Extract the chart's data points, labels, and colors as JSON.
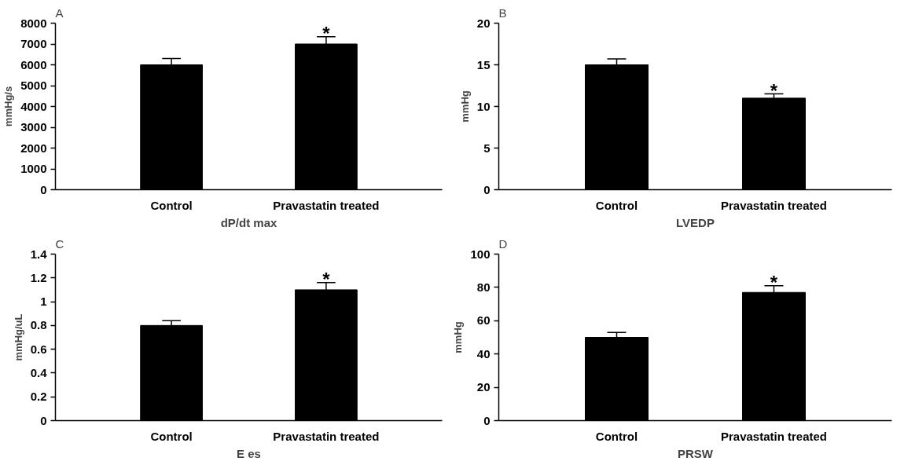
{
  "chart_data": [
    {
      "type": "bar",
      "title": "A",
      "xlabel": "dP/dt max",
      "ylabel": "mmHg/s",
      "categories": [
        "Control",
        "Pravastatin treated"
      ],
      "values": [
        6000,
        7000
      ],
      "errors": [
        [
          6000,
          6300
        ],
        [
          7000,
          7350
        ]
      ],
      "color": "#000000",
      "ylim": [
        0,
        8000
      ],
      "yticks": [
        0,
        1000,
        2000,
        3000,
        4000,
        5000,
        6000,
        7000,
        8000
      ],
      "grid": false,
      "annotations": [
        {
          "text": "*",
          "x": "Pravastatin treated",
          "y": 7350
        }
      ]
    },
    {
      "type": "bar",
      "title": "B",
      "xlabel": "LVEDP",
      "ylabel": "mmHg",
      "categories": [
        "Control",
        "Pravastatin treated"
      ],
      "values": [
        15,
        11
      ],
      "errors": [
        [
          15,
          15.7
        ],
        [
          11,
          11.5
        ]
      ],
      "color": "#000000",
      "ylim": [
        0,
        20
      ],
      "yticks": [
        0,
        5,
        10,
        15,
        20
      ],
      "grid": false,
      "annotations": [
        {
          "text": "*",
          "x": "Pravastatin treated",
          "y": 11.5
        }
      ]
    },
    {
      "type": "bar",
      "title": "C",
      "xlabel": "E es",
      "ylabel": "mmHg/uL",
      "categories": [
        "Control",
        "Pravastatin treated"
      ],
      "values": [
        0.8,
        1.1
      ],
      "errors": [
        [
          0.8,
          0.84
        ],
        [
          1.1,
          1.16
        ]
      ],
      "color": "#000000",
      "ylim": [
        0,
        1.4
      ],
      "yticks": [
        0,
        {
          "value": 0.2,
          "label": "0.2"
        },
        {
          "value": 0.4,
          "label": "0.4"
        },
        {
          "value": 0.6,
          "label": "0.6"
        },
        {
          "value": 0.8,
          "label": "0.8"
        },
        1,
        {
          "value": 1.2,
          "label": "1.2"
        },
        {
          "value": 1.4,
          "label": "1.4"
        }
      ],
      "grid": false,
      "annotations": [
        {
          "text": "*",
          "x": "Pravastatin treated",
          "y": 1.16
        }
      ]
    },
    {
      "type": "bar",
      "title": "D",
      "xlabel": "PRSW",
      "ylabel": "mmHg",
      "categories": [
        "Control",
        "Pravastatin treated"
      ],
      "values": [
        50,
        77
      ],
      "errors": [
        [
          50,
          53
        ],
        [
          77,
          81
        ]
      ],
      "color": "#000000",
      "ylim": [
        0,
        100
      ],
      "yticks": [
        0,
        20,
        40,
        60,
        80,
        100
      ],
      "grid": false,
      "annotations": [
        {
          "text": "*",
          "x": "Pravastatin treated",
          "y": 81
        }
      ]
    }
  ]
}
